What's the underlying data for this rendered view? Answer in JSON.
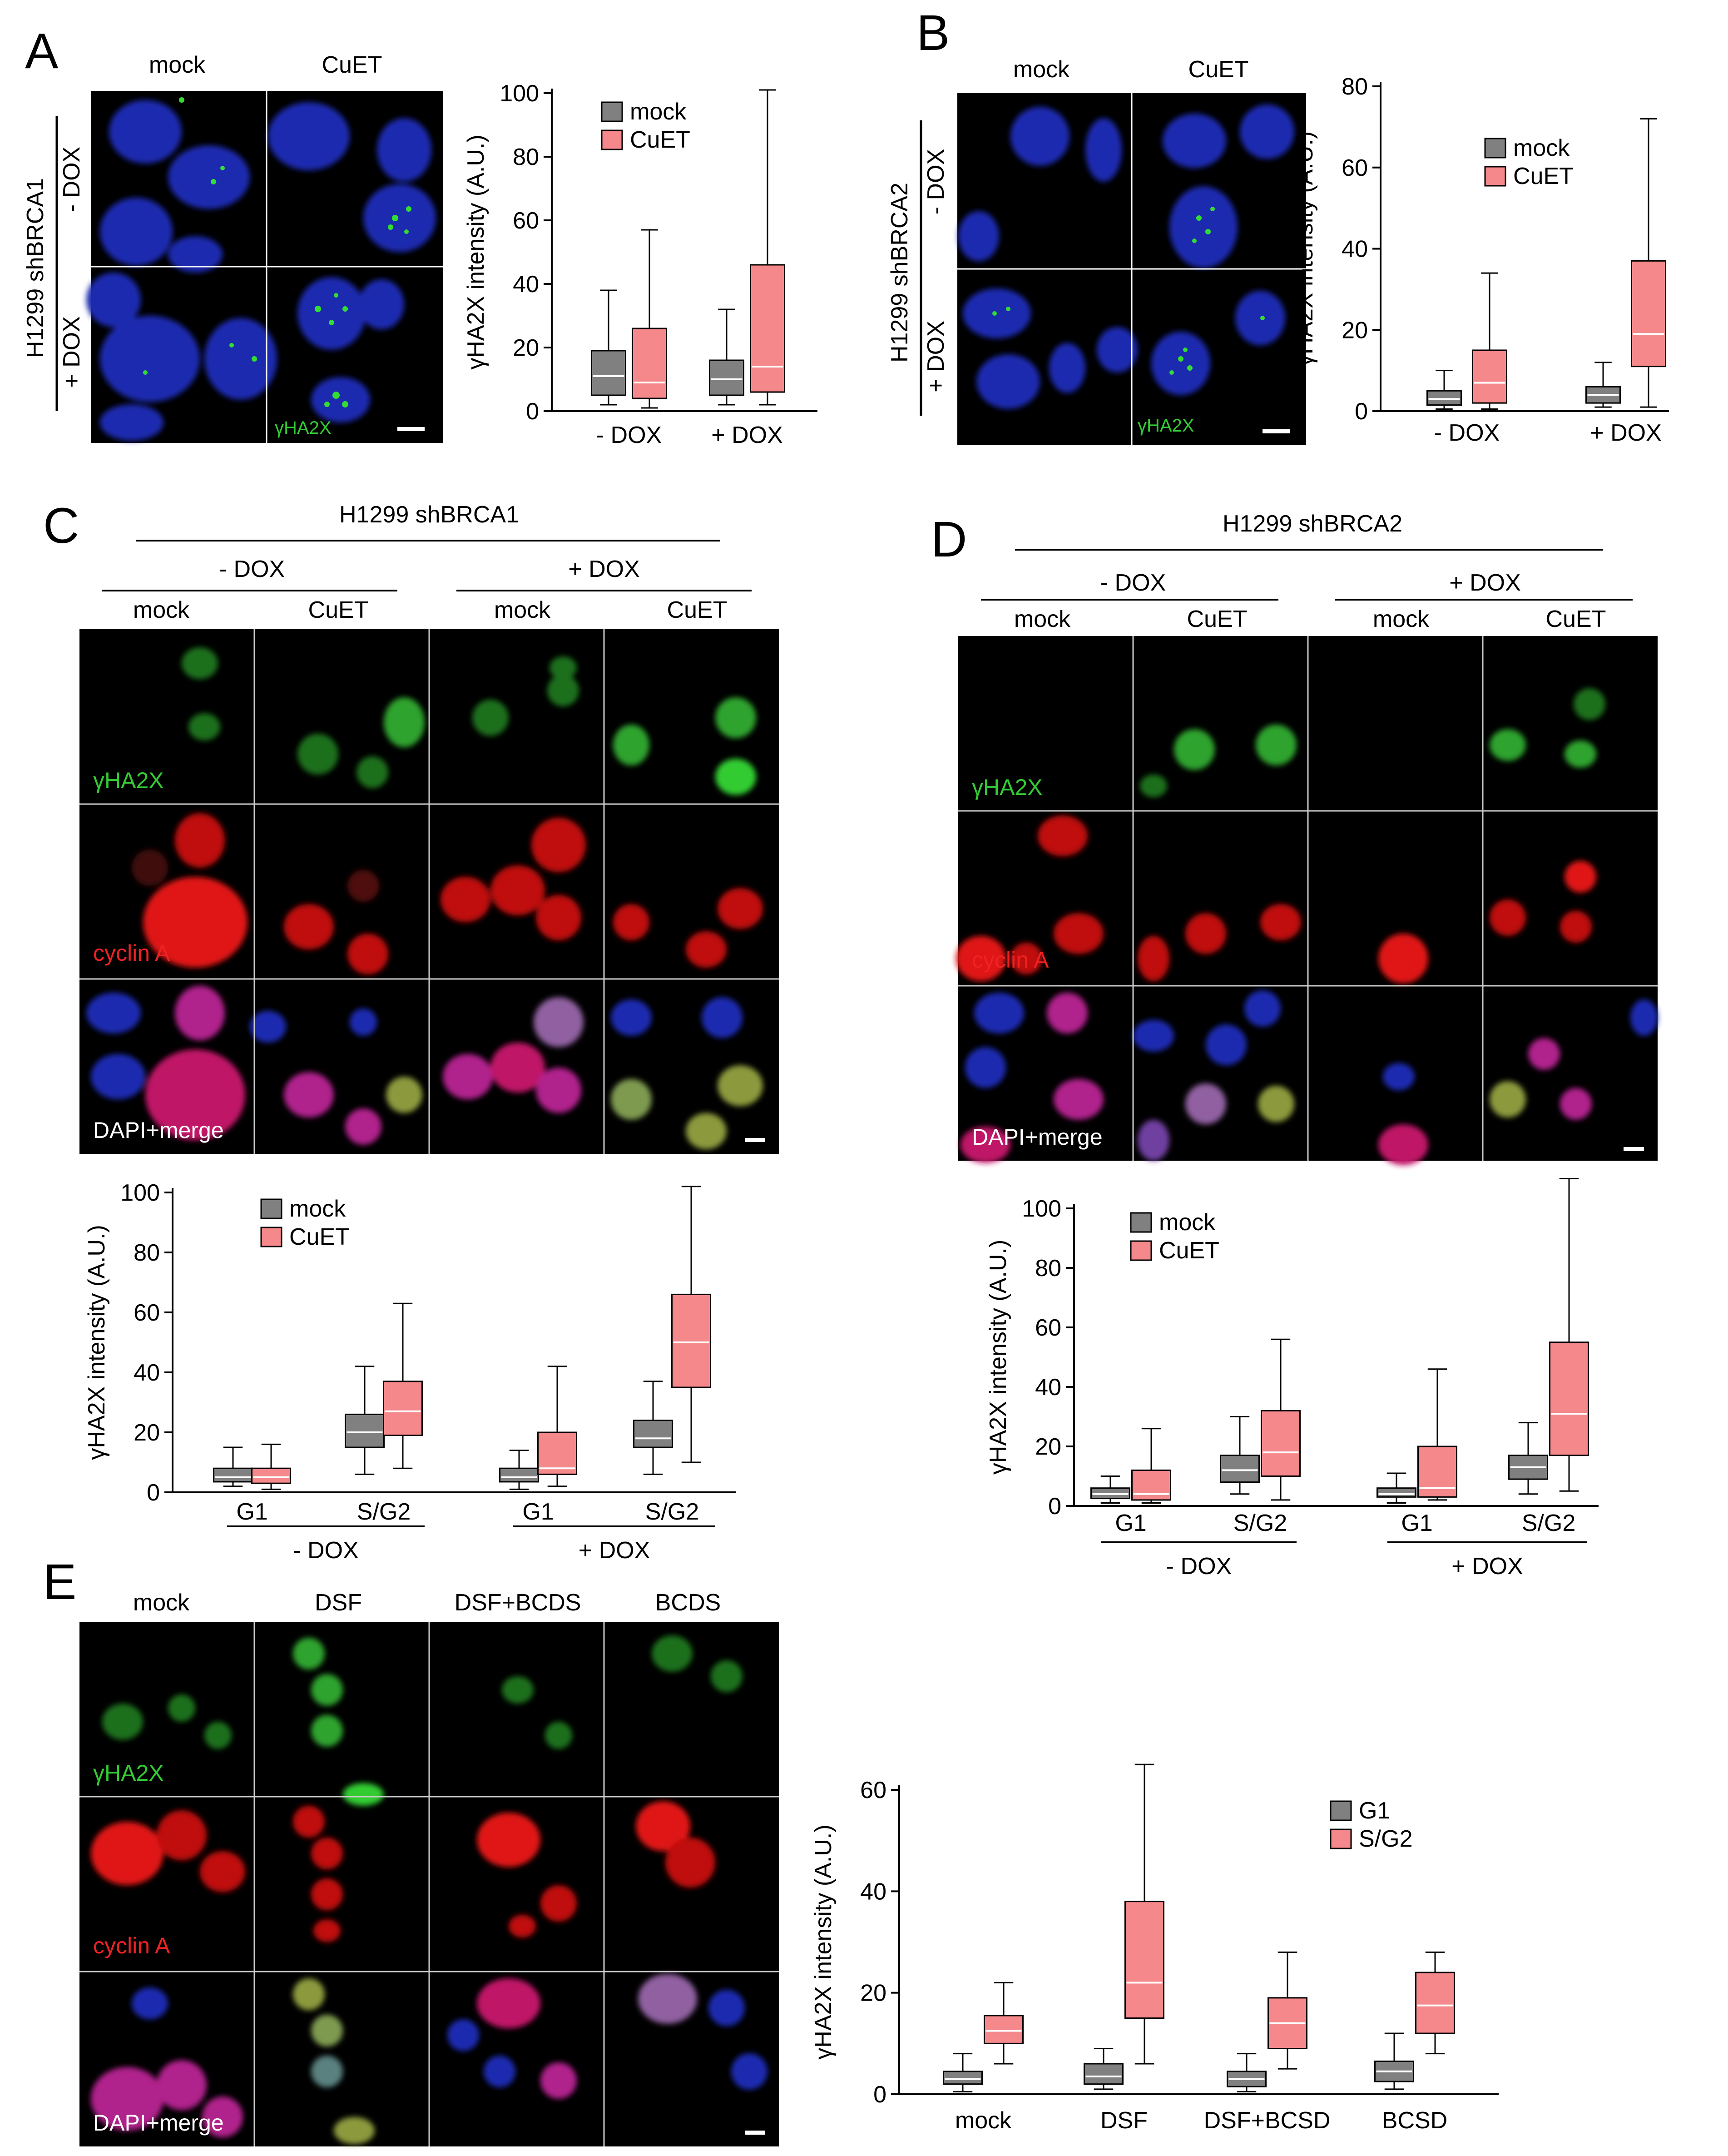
{
  "colors": {
    "mock_box": "#808080",
    "cuet_box": "#f4888a",
    "median_line": "#ffffff",
    "dapi": "#2233cc",
    "gh2ax": "#33cc33",
    "cyclin": "#dd1111"
  },
  "panel_A": {
    "letter": "A",
    "col_labels": [
      "mock",
      "CuET"
    ],
    "cell_line": "H1299 shBRCA1",
    "row_labels": [
      "- DOX",
      "+ DOX"
    ],
    "stain_label": "γHA2X"
  },
  "panel_B": {
    "letter": "B",
    "col_labels": [
      "mock",
      "CuET"
    ],
    "cell_line": "H1299 shBRCA2",
    "row_labels": [
      "- DOX",
      "+ DOX"
    ],
    "stain_label": "γHA2X"
  },
  "panel_C": {
    "letter": "C",
    "title": "H1299 shBRCA1",
    "groups": [
      "- DOX",
      "+ DOX"
    ],
    "col_labels": [
      "mock",
      "CuET",
      "mock",
      "CuET"
    ],
    "row_labels": [
      "γHA2X",
      "cyclin A",
      "DAPI+merge"
    ]
  },
  "panel_D": {
    "letter": "D",
    "title": "H1299 shBRCA2",
    "groups": [
      "- DOX",
      "+ DOX"
    ],
    "col_labels": [
      "mock",
      "CuET",
      "mock",
      "CuET"
    ],
    "row_labels": [
      "γHA2X",
      "cyclin A",
      "DAPI+merge"
    ]
  },
  "panel_E": {
    "letter": "E",
    "col_labels": [
      "mock",
      "DSF",
      "DSF+BCDS",
      "BCDS"
    ],
    "row_labels": [
      "γHA2X",
      "cyclin A",
      "DAPI+merge"
    ]
  },
  "chart_data": [
    {
      "id": "A",
      "type": "box",
      "title": "",
      "xlabel": "",
      "ylabel": "γHA2X intensity (A.U.)",
      "ylim": [
        0,
        100
      ],
      "yticks": [
        0,
        20,
        40,
        60,
        80,
        100
      ],
      "categories": [
        "- DOX",
        "+ DOX"
      ],
      "series": [
        {
          "name": "mock",
          "color": "#808080",
          "boxes": [
            {
              "min": 2,
              "q1": 5,
              "median": 11,
              "q3": 19,
              "max": 38
            },
            {
              "min": 2,
              "q1": 5,
              "median": 10,
              "q3": 16,
              "max": 32
            }
          ]
        },
        {
          "name": "CuET",
          "color": "#f4888a",
          "boxes": [
            {
              "min": 1,
              "q1": 4,
              "median": 9,
              "q3": 26,
              "max": 57
            },
            {
              "min": 2,
              "q1": 6,
              "median": 14,
              "q3": 46,
              "max": 101
            }
          ]
        }
      ]
    },
    {
      "id": "B",
      "type": "box",
      "title": "",
      "xlabel": "",
      "ylabel": "γHA2X intensity (A.U.)",
      "ylim": [
        0,
        80
      ],
      "yticks": [
        0,
        20,
        40,
        60,
        80
      ],
      "categories": [
        "- DOX",
        "+ DOX"
      ],
      "series": [
        {
          "name": "mock",
          "color": "#808080",
          "boxes": [
            {
              "min": 0.5,
              "q1": 1.5,
              "median": 3,
              "q3": 5,
              "max": 10
            },
            {
              "min": 1,
              "q1": 2,
              "median": 4,
              "q3": 6,
              "max": 12
            }
          ]
        },
        {
          "name": "CuET",
          "color": "#f4888a",
          "boxes": [
            {
              "min": 0.5,
              "q1": 2,
              "median": 7,
              "q3": 15,
              "max": 34
            },
            {
              "min": 1,
              "q1": 11,
              "median": 19,
              "q3": 37,
              "max": 72
            }
          ]
        }
      ]
    },
    {
      "id": "C",
      "type": "box",
      "title": "",
      "xlabel": "",
      "ylabel": "γHA2X intensity (A.U.)",
      "ylim": [
        0,
        100
      ],
      "yticks": [
        0,
        20,
        40,
        60,
        80,
        100
      ],
      "categories": [
        "G1",
        "S/G2",
        "G1",
        "S/G2"
      ],
      "groups": [
        "- DOX",
        "+ DOX"
      ],
      "series": [
        {
          "name": "mock",
          "color": "#808080",
          "boxes": [
            {
              "min": 2,
              "q1": 3.5,
              "median": 5,
              "q3": 8,
              "max": 15
            },
            {
              "min": 6,
              "q1": 15,
              "median": 20,
              "q3": 26,
              "max": 42
            },
            {
              "min": 1,
              "q1": 3.5,
              "median": 5,
              "q3": 8,
              "max": 14
            },
            {
              "min": 6,
              "q1": 15,
              "median": 18,
              "q3": 24,
              "max": 37
            }
          ]
        },
        {
          "name": "CuET",
          "color": "#f4888a",
          "boxes": [
            {
              "min": 1,
              "q1": 3,
              "median": 5,
              "q3": 8,
              "max": 16
            },
            {
              "min": 8,
              "q1": 19,
              "median": 27,
              "q3": 37,
              "max": 63
            },
            {
              "min": 2,
              "q1": 6,
              "median": 8,
              "q3": 20,
              "max": 42
            },
            {
              "min": 10,
              "q1": 35,
              "median": 50,
              "q3": 66,
              "max": 102
            }
          ]
        }
      ]
    },
    {
      "id": "D",
      "type": "box",
      "title": "",
      "xlabel": "",
      "ylabel": "γHA2X intensity (A.U.)",
      "ylim": [
        0,
        100
      ],
      "yticks": [
        0,
        20,
        40,
        60,
        80,
        100
      ],
      "categories": [
        "G1",
        "S/G2",
        "G1",
        "S/G2"
      ],
      "groups": [
        "- DOX",
        "+ DOX"
      ],
      "series": [
        {
          "name": "mock",
          "color": "#808080",
          "boxes": [
            {
              "min": 1,
              "q1": 2.5,
              "median": 4,
              "q3": 6,
              "max": 10
            },
            {
              "min": 4,
              "q1": 8,
              "median": 12,
              "q3": 17,
              "max": 30
            },
            {
              "min": 1,
              "q1": 3,
              "median": 4,
              "q3": 6,
              "max": 11
            },
            {
              "min": 4,
              "q1": 9,
              "median": 13,
              "q3": 17,
              "max": 28
            }
          ]
        },
        {
          "name": "CuET",
          "color": "#f4888a",
          "boxes": [
            {
              "min": 1,
              "q1": 2,
              "median": 4,
              "q3": 12,
              "max": 26
            },
            {
              "min": 2,
              "q1": 10,
              "median": 18,
              "q3": 32,
              "max": 56
            },
            {
              "min": 2,
              "q1": 3,
              "median": 6,
              "q3": 20,
              "max": 46
            },
            {
              "min": 5,
              "q1": 17,
              "median": 31,
              "q3": 55,
              "max": 110
            }
          ]
        }
      ]
    },
    {
      "id": "E",
      "type": "box",
      "title": "",
      "xlabel": "",
      "ylabel": "γHA2X intensity (A.U.)",
      "ylim": [
        0,
        60
      ],
      "yticks": [
        0,
        20,
        40,
        60
      ],
      "categories": [
        "mock",
        "DSF",
        "DSF+BCSD",
        "BCSD"
      ],
      "series": [
        {
          "name": "G1",
          "color": "#808080",
          "boxes": [
            {
              "min": 0.5,
              "q1": 2,
              "median": 3,
              "q3": 4.5,
              "max": 8
            },
            {
              "min": 1,
              "q1": 2,
              "median": 3.5,
              "q3": 6,
              "max": 9
            },
            {
              "min": 0.5,
              "q1": 1.5,
              "median": 3,
              "q3": 4.5,
              "max": 8
            },
            {
              "min": 1,
              "q1": 2.5,
              "median": 4.5,
              "q3": 6.5,
              "max": 12
            }
          ]
        },
        {
          "name": "S/G2",
          "color": "#f4888a",
          "boxes": [
            {
              "min": 6,
              "q1": 10,
              "median": 12.5,
              "q3": 15.5,
              "max": 22
            },
            {
              "min": 6,
              "q1": 15,
              "median": 22,
              "q3": 38,
              "max": 65
            },
            {
              "min": 5,
              "q1": 9,
              "median": 14,
              "q3": 19,
              "max": 28
            },
            {
              "min": 8,
              "q1": 12,
              "median": 17.5,
              "q3": 24,
              "max": 28
            }
          ]
        }
      ]
    }
  ]
}
